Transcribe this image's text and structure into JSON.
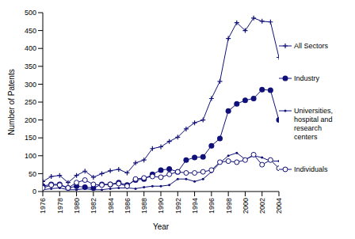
{
  "chart_data": {
    "type": "line",
    "x_label": "Year",
    "y_label": "Number of Patents",
    "x": [
      1976,
      1977,
      1978,
      1979,
      1980,
      1981,
      1982,
      1983,
      1984,
      1985,
      1986,
      1987,
      1988,
      1989,
      1990,
      1991,
      1992,
      1993,
      1994,
      1995,
      1996,
      1997,
      1998,
      1999,
      2000,
      2001,
      2002,
      2003,
      2004
    ],
    "xlim": [
      1976,
      2004
    ],
    "xticks": [
      1976,
      1978,
      1980,
      1982,
      1984,
      1986,
      1988,
      1990,
      1992,
      1994,
      1996,
      1998,
      2000,
      2002,
      2004
    ],
    "ylim": [
      0,
      500
    ],
    "yticks": [
      0,
      50,
      100,
      150,
      200,
      250,
      300,
      350,
      400,
      450,
      500
    ],
    "grid": false,
    "legend": "right",
    "series": [
      {
        "name": "All Sectors",
        "color": "#10107a",
        "marker": "cross",
        "values": [
          28,
          42,
          45,
          25,
          45,
          57,
          40,
          50,
          58,
          62,
          52,
          80,
          88,
          120,
          125,
          140,
          152,
          175,
          192,
          200,
          260,
          308,
          428,
          472,
          450,
          485,
          476,
          474,
          375
        ]
      },
      {
        "name": "Industry",
        "color": "#10107a",
        "marker": "filled_circle",
        "values": [
          15,
          20,
          20,
          10,
          15,
          12,
          10,
          20,
          20,
          25,
          18,
          32,
          35,
          48,
          60,
          63,
          55,
          88,
          95,
          97,
          128,
          148,
          225,
          245,
          255,
          260,
          285,
          283,
          200
        ]
      },
      {
        "name": "Universities, hospital and research centers",
        "color": "#10107a",
        "marker": "dot",
        "values": [
          5,
          8,
          10,
          5,
          5,
          8,
          5,
          5,
          8,
          10,
          10,
          8,
          12,
          15,
          15,
          18,
          35,
          35,
          28,
          35,
          55,
          80,
          100,
          108,
          90,
          100,
          95,
          85,
          85
        ]
      },
      {
        "name": "Individuals",
        "color": "#10107a",
        "marker": "open_circle",
        "values": [
          10,
          18,
          18,
          10,
          25,
          32,
          20,
          18,
          20,
          22,
          15,
          35,
          38,
          42,
          40,
          48,
          55,
          52,
          52,
          55,
          60,
          82,
          85,
          82,
          88,
          103,
          75,
          88,
          65
        ]
      }
    ]
  }
}
